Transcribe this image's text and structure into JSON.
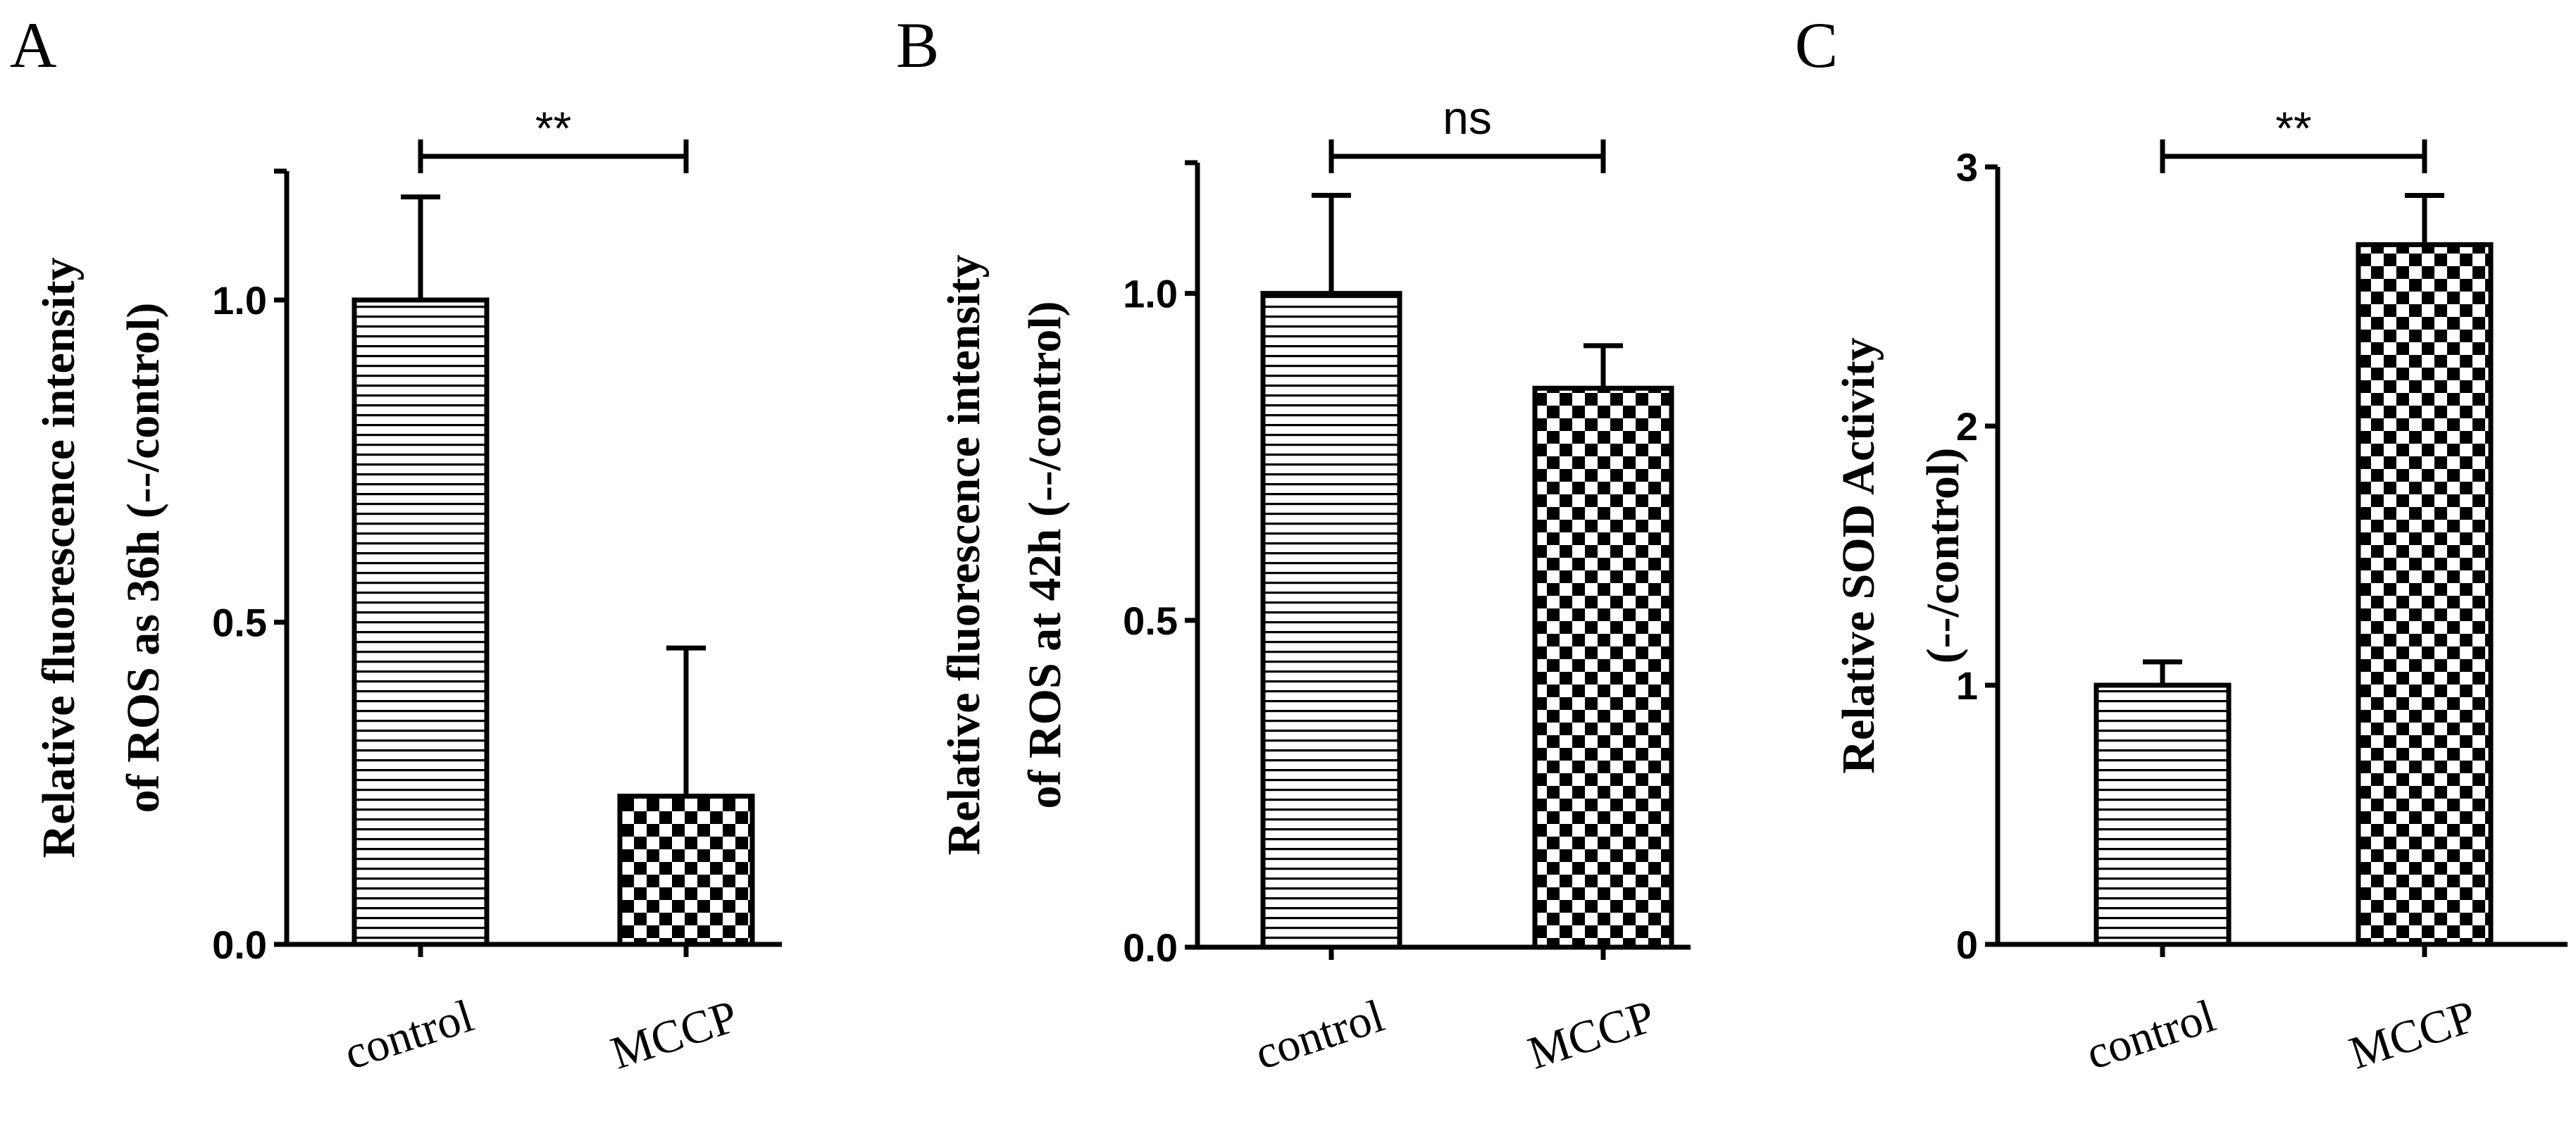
{
  "chart_data": [
    {
      "type": "bar",
      "panel": "A",
      "categories": [
        "control",
        "MCCP"
      ],
      "values": [
        1.0,
        0.23
      ],
      "errors": [
        0.16,
        0.23
      ],
      "patterns": [
        "horizontal-lines",
        "checker"
      ],
      "ylabel_lines": [
        "Relative fluorescence intensity",
        "of ROS as 36h (--/control)"
      ],
      "ylim": [
        0,
        1.2
      ],
      "yticks": [
        0.0,
        0.5,
        1.0
      ],
      "ytick_labels": [
        "0.0",
        "0.5",
        "1.0"
      ],
      "significance": "**"
    },
    {
      "type": "bar",
      "panel": "B",
      "categories": [
        "control",
        "MCCP"
      ],
      "values": [
        1.0,
        0.855
      ],
      "errors": [
        0.15,
        0.065
      ],
      "patterns": [
        "horizontal-lines",
        "checker"
      ],
      "ylabel_lines": [
        "Relative fluorescence intensity",
        "of ROS at 42h (--/control)"
      ],
      "ylim": [
        0,
        1.2
      ],
      "yticks": [
        0.0,
        0.5,
        1.0
      ],
      "ytick_labels": [
        "0.0",
        "0.5",
        "1.0"
      ],
      "significance": "ns"
    },
    {
      "type": "bar",
      "panel": "C",
      "categories": [
        "control",
        "MCCP"
      ],
      "values": [
        1.0,
        2.7
      ],
      "errors": [
        0.09,
        0.19
      ],
      "patterns": [
        "horizontal-lines",
        "checker"
      ],
      "ylabel_lines": [
        "Relative SOD Activity",
        "(--/control)"
      ],
      "ylim": [
        0,
        3
      ],
      "yticks": [
        0,
        1,
        2,
        3
      ],
      "ytick_labels": [
        "0",
        "1",
        "2",
        "3"
      ],
      "significance": "**"
    }
  ]
}
